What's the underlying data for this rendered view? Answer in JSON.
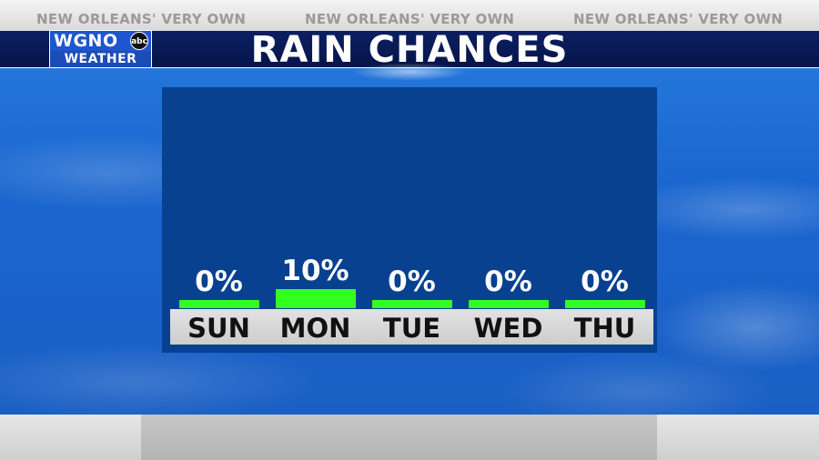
{
  "tagline": "NEW ORLEANS' VERY OWN",
  "title": "RAIN CHANCES",
  "logo": {
    "top": "WGNO",
    "network": "abc",
    "bottom": "WEATHER"
  },
  "colors": {
    "bar": "#33ff1f",
    "title_bar": "#0c1f63",
    "panel": "#08418f"
  },
  "chart_data": {
    "type": "bar",
    "categories": [
      "SUN",
      "MON",
      "TUE",
      "WED",
      "THU"
    ],
    "values": [
      0,
      10,
      0,
      0,
      0
    ],
    "value_labels": [
      "0%",
      "10%",
      "0%",
      "0%",
      "0%"
    ],
    "ylim": [
      0,
      100
    ]
  }
}
